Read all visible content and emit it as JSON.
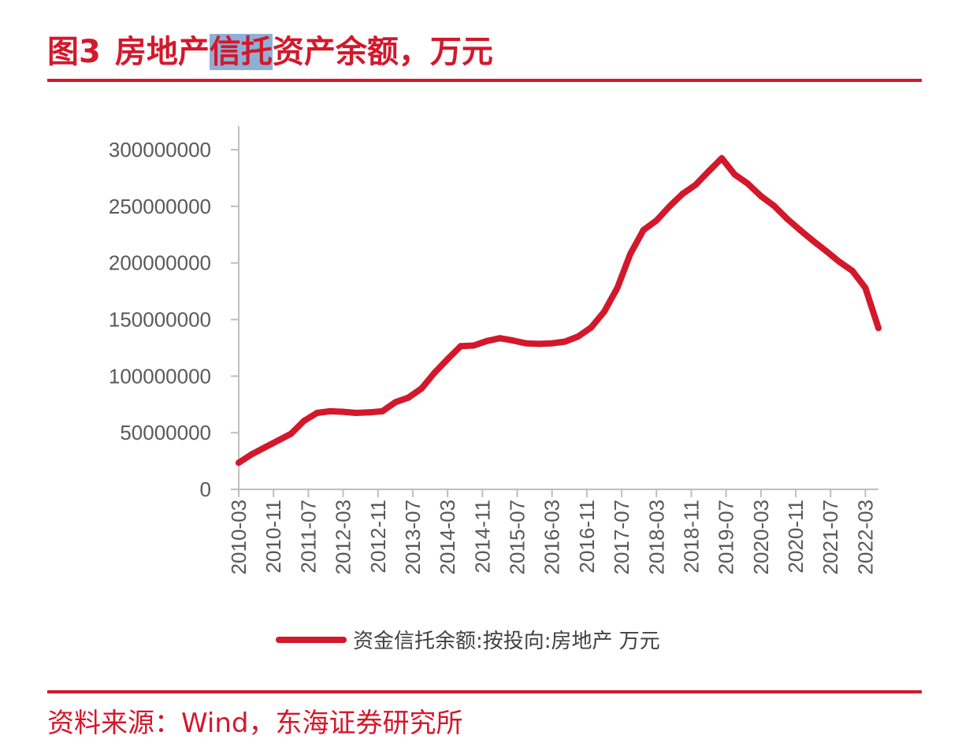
{
  "title": {
    "number": "图3",
    "pre": "房地产",
    "highlight": "信托",
    "post": "资产余额，万元"
  },
  "source": "资料来源：Wind，东海证券研究所",
  "colors": {
    "accent": "#d3182b",
    "axis": "#bfbfbf",
    "text": "#595959"
  },
  "chart_data": {
    "type": "line",
    "title": "",
    "xlabel": "",
    "ylabel": "",
    "ylim": [
      0,
      300000000
    ],
    "yticks": [
      0,
      50000000,
      100000000,
      150000000,
      200000000,
      250000000,
      300000000
    ],
    "xtick_labels": [
      "2010-03",
      "2010-11",
      "2011-07",
      "2012-03",
      "2012-11",
      "2013-07",
      "2014-03",
      "2014-11",
      "2015-07",
      "2016-03",
      "2016-11",
      "2017-07",
      "2018-03",
      "2018-11",
      "2019-07",
      "2020-03",
      "2020-11",
      "2021-07",
      "2022-03"
    ],
    "grid": false,
    "legend_position": "bottom",
    "x": [
      "2010-03",
      "2010-06",
      "2010-09",
      "2010-12",
      "2011-03",
      "2011-06",
      "2011-09",
      "2011-12",
      "2012-03",
      "2012-06",
      "2012-09",
      "2012-12",
      "2013-03",
      "2013-06",
      "2013-09",
      "2013-12",
      "2014-03",
      "2014-06",
      "2014-09",
      "2014-12",
      "2015-03",
      "2015-06",
      "2015-09",
      "2015-12",
      "2016-03",
      "2016-06",
      "2016-09",
      "2016-12",
      "2017-03",
      "2017-06",
      "2017-09",
      "2017-12",
      "2018-03",
      "2018-06",
      "2018-09",
      "2018-12",
      "2019-03",
      "2019-06",
      "2019-09",
      "2019-12",
      "2020-03",
      "2020-06",
      "2020-09",
      "2020-12",
      "2021-03",
      "2021-06",
      "2021-09",
      "2021-12",
      "2022-03",
      "2022-06"
    ],
    "series": [
      {
        "name": "资金信托余额:按投向:房地产 万元",
        "color": "#d3182b",
        "values": [
          23500000,
          31000000,
          37000000,
          43000000,
          49000000,
          60500000,
          67500000,
          69000000,
          68500000,
          67500000,
          68000000,
          69000000,
          77000000,
          81000000,
          89000000,
          103000000,
          115000000,
          126500000,
          127000000,
          131000000,
          133500000,
          131500000,
          129000000,
          128500000,
          129000000,
          130500000,
          135000000,
          143000000,
          157000000,
          178000000,
          208000000,
          229000000,
          237500000,
          250000000,
          261000000,
          269000000,
          281000000,
          292500000,
          278000000,
          270000000,
          259000000,
          250500000,
          239000000,
          229000000,
          219500000,
          210500000,
          201000000,
          193000000,
          178000000,
          142500000
        ]
      }
    ]
  }
}
